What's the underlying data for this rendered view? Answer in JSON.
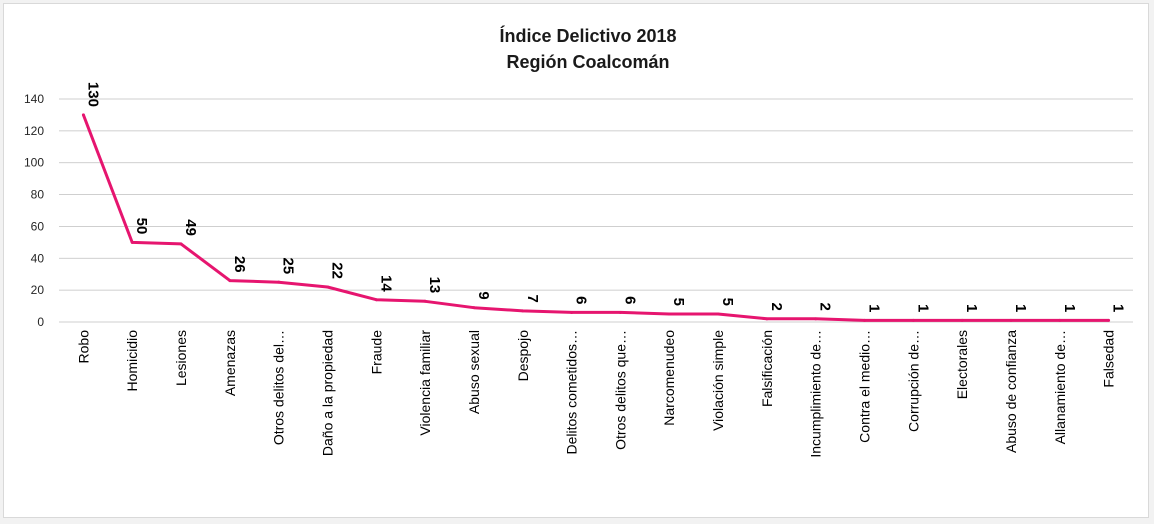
{
  "chart_data": {
    "type": "line",
    "title": "Índice Delictivo 2018",
    "subtitle": "Región Coalcomán",
    "xlabel": "",
    "ylabel": "",
    "ylim": [
      0,
      140
    ],
    "yticks": [
      0,
      20,
      40,
      60,
      80,
      100,
      120,
      140
    ],
    "grid": true,
    "legend": "none",
    "line_color": "#e6156f",
    "categories": [
      "Robo",
      "Homicidio",
      "Lesiones",
      "Amenazas",
      "Otros delitos del…",
      "Daño a la propiedad",
      "Fraude",
      "Violencia familiar",
      "Abuso sexual",
      "Despojo",
      "Delitos cometidos…",
      "Otros delitos que…",
      "Narcomenudeo",
      "Violación simple",
      "Falsificación",
      "Incumplimiento de…",
      "Contra el medio…",
      "Corrupción de…",
      "Electorales",
      "Abuso de confianza",
      "Allanamiento de…",
      "Falsedad"
    ],
    "values": [
      130,
      50,
      49,
      26,
      25,
      22,
      14,
      13,
      9,
      7,
      6,
      6,
      5,
      5,
      2,
      2,
      1,
      1,
      1,
      1,
      1,
      1
    ]
  }
}
